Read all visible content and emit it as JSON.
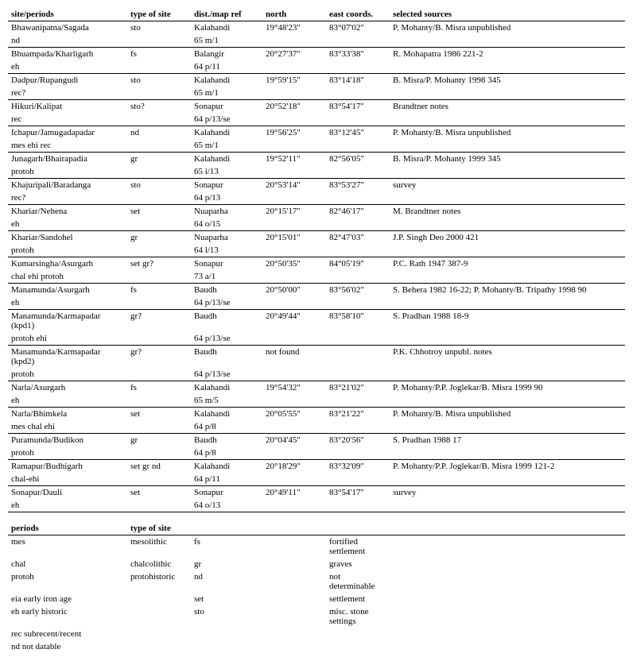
{
  "headers": {
    "site": "site/periods",
    "type": "type of site",
    "dist": "dist./map ref",
    "north": "north",
    "east": "east coords.",
    "sources": "selected sources"
  },
  "rows": [
    {
      "r": [
        "Bhawanipatna/Sagada",
        "sto",
        "Kalahandi",
        "19°48'23\"",
        "83°07'02\"",
        "P. Mohanty/B. Misra unpublished"
      ],
      "b": false
    },
    {
      "r": [
        "nd",
        "",
        "65 m/1",
        "",
        "",
        ""
      ],
      "b": true
    },
    {
      "r": [
        "Bhuampada/Kharligarh",
        "fs",
        "Balangir",
        "20°27'37\"",
        "83°33'38\"",
        "R. Mohapatra 1986 221-2"
      ],
      "b": false
    },
    {
      "r": [
        "eh",
        "",
        "64 p/11",
        "",
        "",
        ""
      ],
      "b": true
    },
    {
      "r": [
        "Dadpur/Rupangudi",
        "sto",
        "Kalahandi",
        "19°59'15\"",
        "83°14'18\"",
        "B. Misra/P. Mohanty 1998 345"
      ],
      "b": false
    },
    {
      "r": [
        "rec?",
        "",
        "65 m/1",
        "",
        "",
        ""
      ],
      "b": true
    },
    {
      "r": [
        "Hikuri/Kalipat",
        "sto?",
        "Sonapur",
        "20°52'18\"",
        "83°54'17\"",
        "Brandtner notes"
      ],
      "b": false
    },
    {
      "r": [
        "rec",
        "",
        "64 p/13/se",
        "",
        "",
        ""
      ],
      "b": true
    },
    {
      "r": [
        "Ichapur/Jamugadapadar",
        "nd",
        "Kalahandi",
        "19°56'25\"",
        "83°12'45\"",
        "P. Mohanty/B. Misra unpublished"
      ],
      "b": false
    },
    {
      "r": [
        "mes ehi rec",
        "",
        "65 m/1",
        "",
        "",
        ""
      ],
      "b": true
    },
    {
      "r": [
        "Junagarh/Bhairapadia",
        "gr",
        "Kalahandi",
        "19°52'11\"",
        "82°56'05\"",
        "B. Misra/P. Mohanty 1999 345"
      ],
      "b": false
    },
    {
      "r": [
        "protoh",
        "",
        "65 i/13",
        "",
        "",
        ""
      ],
      "b": true
    },
    {
      "r": [
        "Khajuripali/Baradanga",
        "sto",
        "Sonapur",
        "20°53'14\"",
        "83°53'27\"",
        "survey"
      ],
      "b": false
    },
    {
      "r": [
        "rec?",
        "",
        "64 p/13",
        "",
        "",
        ""
      ],
      "b": true
    },
    {
      "r": [
        "Khariar/Nehena",
        "set",
        "Nuaparha",
        "20°15'17\"",
        "82°46'17\"",
        "M. Brandtner notes"
      ],
      "b": false
    },
    {
      "r": [
        "eh",
        "",
        "64 o/15",
        "",
        "",
        ""
      ],
      "b": true
    },
    {
      "r": [
        "Khariar/Sandohel",
        "gr",
        "Nuaparha",
        "20°15'01\"",
        "82°47'03\"",
        "J.P. Singh Deo 2000 421"
      ],
      "b": false
    },
    {
      "r": [
        "protoh",
        "",
        "64 l/13",
        "",
        "",
        ""
      ],
      "b": true
    },
    {
      "r": [
        "Kumarsingha/Asurgarh",
        "set gr?",
        "Sonapur",
        "20°50'35\"",
        "84°05'19\"",
        "P.C. Rath 1947 387-9"
      ],
      "b": false
    },
    {
      "r": [
        "chal ehi protoh",
        "",
        "73 a/1",
        "",
        "",
        ""
      ],
      "b": true
    },
    {
      "r": [
        "Manamunda/Asurgarh",
        "fs",
        "Baudh",
        "20°50'00\"",
        "83°56'02\"",
        "S. Behera 1982 16-22; P. Mohanty/B. Tripathy 1998 90"
      ],
      "b": false
    },
    {
      "r": [
        "eh",
        "",
        "64 p/13/se",
        "",
        "",
        ""
      ],
      "b": true
    },
    {
      "r": [
        "Manamunda/Karmapadar (kpd1)",
        "gr?",
        "Baudh",
        "20°49'44\"",
        "83°58'10\"",
        "S. Pradhan 1988 18-9"
      ],
      "b": false
    },
    {
      "r": [
        "protoh ehi",
        "",
        "64 p/13/se",
        "",
        "",
        ""
      ],
      "b": true
    },
    {
      "r": [
        "Manamunda/Karmapadar (kpd2)",
        "gr?",
        "Baudh",
        "not found",
        "",
        "P.K. Chhotroy unpubl. notes"
      ],
      "b": false
    },
    {
      "r": [
        "protoh",
        "",
        "64 p/13/se",
        "",
        "",
        ""
      ],
      "b": true
    },
    {
      "r": [
        "Narla/Asurgarh",
        "fs",
        "Kalahandi",
        "19°54'32\"",
        "83°21'02\"",
        "P. Mohanty/P.P. Joglekar/B. Misra 1999 90"
      ],
      "b": false
    },
    {
      "r": [
        "eh",
        "",
        "65 m/5",
        "",
        "",
        ""
      ],
      "b": true
    },
    {
      "r": [
        "Narla/Bhimkela",
        "set",
        "Kalahandi",
        "20°05'55\"",
        "83°21'22\"",
        "P. Mohanty/B. Misra unpublished"
      ],
      "b": false
    },
    {
      "r": [
        "mes chal ehi",
        "",
        "64 p/8",
        "",
        "",
        ""
      ],
      "b": true
    },
    {
      "r": [
        "Puramunda/Budikon",
        "gr",
        "Baudh",
        "20°04'45\"",
        "83°20'56\"",
        "S. Pradhan 1988 17"
      ],
      "b": false
    },
    {
      "r": [
        "protoh",
        "",
        "64 p/8",
        "",
        "",
        ""
      ],
      "b": true
    },
    {
      "r": [
        "Ramapur/Budhigarh",
        "set gr nd",
        "Kalahandi",
        "20°18'29\"",
        "83°32'09\"",
        "P. Mohanty/P.P. Joglekar/B. Misra 1999 121-2"
      ],
      "b": false
    },
    {
      "r": [
        "chal-ehi",
        "",
        "64 p/11",
        "",
        "",
        ""
      ],
      "b": true
    },
    {
      "r": [
        "Sonapur/Dauli",
        "set",
        "Sonapur",
        "20°49'11\"",
        "83°54'17\"",
        "survey"
      ],
      "b": false
    },
    {
      "r": [
        "eh",
        "",
        "64 o/13",
        "",
        "",
        ""
      ],
      "b": true
    }
  ],
  "legendHeader": {
    "periods": "periods",
    "type": "type of site"
  },
  "legend": [
    {
      "r": [
        "mes",
        "mesolithic",
        "fs",
        "",
        "fortified settlement",
        ""
      ],
      "b": false
    },
    {
      "r": [
        "chal",
        "chalcolithic",
        "gr",
        "",
        "graves",
        ""
      ],
      "b": false
    },
    {
      "r": [
        "protoh",
        "protohistoric",
        "nd",
        "",
        "not determinable",
        ""
      ],
      "b": false
    },
    {
      "r": [
        "eia early iron age",
        "",
        "set",
        "",
        "settlement",
        ""
      ],
      "b": false
    },
    {
      "r": [
        "eh early historic",
        "",
        "sto",
        "",
        "misc. stone settings",
        ""
      ],
      "b": false
    },
    {
      "r": [
        "rec subrecent/recent",
        "",
        "",
        "",
        "",
        ""
      ],
      "b": false
    },
    {
      "r": [
        "nd not datable",
        "",
        "",
        "",
        "",
        ""
      ],
      "b": false
    }
  ]
}
